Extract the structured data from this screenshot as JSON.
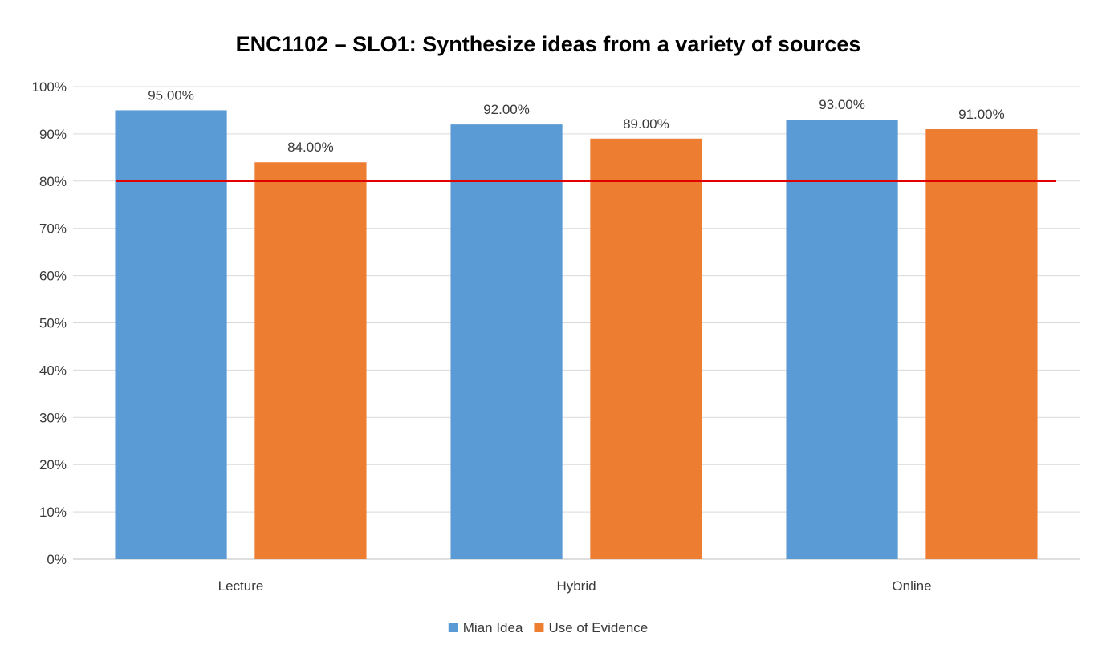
{
  "chart_data": {
    "type": "bar",
    "title": "ENC1102 – SLO1: Synthesize ideas from a variety of sources",
    "xlabel": "",
    "ylabel": "",
    "categories": [
      "Lecture",
      "Hybrid",
      "Online"
    ],
    "series": [
      {
        "name": "Mian Idea",
        "color": "#5B9BD5",
        "values": [
          95,
          92,
          93
        ],
        "labels": [
          "95.00%",
          "92.00%",
          "93.00%"
        ]
      },
      {
        "name": "Use of Evidence",
        "color": "#ED7D31",
        "values": [
          84,
          89,
          91
        ],
        "labels": [
          "84.00%",
          "89.00%",
          "91.00%"
        ]
      }
    ],
    "ylim": [
      0,
      100
    ],
    "yticks": [
      0,
      10,
      20,
      30,
      40,
      50,
      60,
      70,
      80,
      90,
      100
    ],
    "ytick_labels": [
      "0%",
      "10%",
      "20%",
      "30%",
      "40%",
      "50%",
      "60%",
      "70%",
      "80%",
      "90%",
      "100%"
    ],
    "reference_line": {
      "value": 80,
      "color": "#E00000"
    },
    "grid": true,
    "legend_position": "bottom"
  }
}
